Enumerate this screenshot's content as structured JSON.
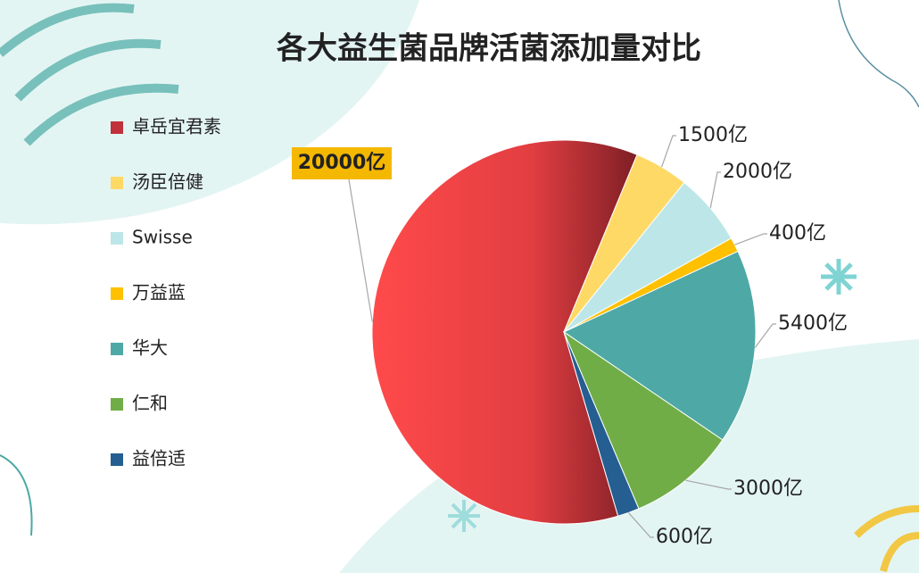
{
  "chart_data": {
    "type": "pie",
    "title": "各大益生菌品牌活菌添加量对比",
    "categories": [
      "卓岳宜君素",
      "汤臣倍健",
      "Swisse",
      "万益蓝",
      "华大",
      "仁和",
      "益倍适"
    ],
    "values": [
      20000,
      1500,
      2000,
      400,
      5400,
      3000,
      600
    ],
    "value_labels": [
      "20000亿",
      "1500亿",
      "2000亿",
      "400亿",
      "5400亿",
      "3000亿",
      "600亿"
    ],
    "colors": [
      "#d93a3e",
      "#ffd966",
      "#bde6e8",
      "#ffc000",
      "#4ea9a6",
      "#70ad47",
      "#255e91"
    ],
    "legend": "left"
  }
}
